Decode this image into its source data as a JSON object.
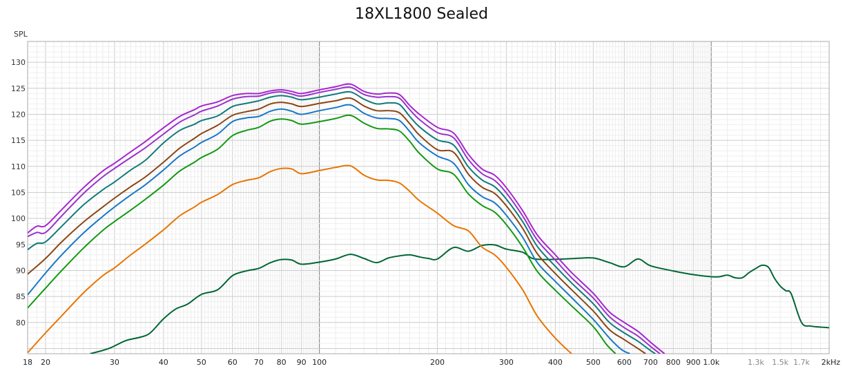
{
  "chart_data": {
    "type": "line",
    "title": "18XL1800 Sealed",
    "ylabel": "SPL",
    "xlabel": "",
    "x_scale": "log",
    "xlim": [
      18,
      2000
    ],
    "ylim": [
      74,
      134
    ],
    "grid": true,
    "legend": "none",
    "y_ticks": [
      80,
      85,
      90,
      95,
      100,
      105,
      110,
      115,
      120,
      125,
      130
    ],
    "x_ticks": [
      {
        "value": 18,
        "label": "18",
        "minor": false
      },
      {
        "value": 20,
        "label": "20",
        "minor": false
      },
      {
        "value": 30,
        "label": "30",
        "minor": false
      },
      {
        "value": 40,
        "label": "40",
        "minor": false
      },
      {
        "value": 50,
        "label": "50",
        "minor": false
      },
      {
        "value": 60,
        "label": "60",
        "minor": false
      },
      {
        "value": 70,
        "label": "70",
        "minor": false
      },
      {
        "value": 80,
        "label": "80",
        "minor": false
      },
      {
        "value": 90,
        "label": "90",
        "minor": false
      },
      {
        "value": 100,
        "label": "100",
        "minor": false
      },
      {
        "value": 200,
        "label": "200",
        "minor": false
      },
      {
        "value": 300,
        "label": "300",
        "minor": false
      },
      {
        "value": 400,
        "label": "400",
        "minor": false
      },
      {
        "value": 500,
        "label": "500",
        "minor": false
      },
      {
        "value": 600,
        "label": "600",
        "minor": false
      },
      {
        "value": 700,
        "label": "700",
        "minor": false
      },
      {
        "value": 800,
        "label": "800",
        "minor": false
      },
      {
        "value": 900,
        "label": "900",
        "minor": false
      },
      {
        "value": 1000,
        "label": "1.0k",
        "minor": false
      },
      {
        "value": 1300,
        "label": "1.3k",
        "minor": true
      },
      {
        "value": 1500,
        "label": "1.5k",
        "minor": true
      },
      {
        "value": 1700,
        "label": "1.7k",
        "minor": true
      },
      {
        "value": 2000,
        "label": "2kHz",
        "minor": false
      }
    ],
    "series": [
      {
        "color": "#006633",
        "x": [
          26,
          29,
          32,
          35,
          37,
          40,
          43,
          46,
          50,
          55,
          60,
          65,
          70,
          75,
          80,
          85,
          90,
          100,
          110,
          120,
          130,
          140,
          150,
          160,
          170,
          180,
          190,
          200,
          220,
          240,
          260,
          280,
          300,
          330,
          350,
          380,
          420,
          450,
          500,
          550,
          600,
          650,
          700,
          800,
          900,
          1000,
          1050,
          1100,
          1150,
          1200,
          1250,
          1300,
          1350,
          1400,
          1450,
          1500,
          1550,
          1600,
          1700,
          1800,
          2000
        ],
        "y": [
          74,
          75,
          76.5,
          77.2,
          78,
          80.7,
          82.6,
          83.5,
          85.4,
          86.3,
          89,
          89.9,
          90.4,
          91.5,
          92.1,
          92,
          91.2,
          91.6,
          92.2,
          93.1,
          92.3,
          91.5,
          92.4,
          92.8,
          93,
          92.6,
          92.3,
          92.2,
          94.4,
          93.7,
          94.8,
          94.9,
          94.1,
          93.5,
          92.3,
          92.1,
          92.2,
          92.3,
          92.4,
          91.5,
          90.7,
          92.2,
          90.9,
          89.9,
          89.2,
          88.8,
          88.8,
          89.1,
          88.6,
          88.6,
          89.6,
          90.4,
          91,
          90.6,
          88.5,
          87,
          86.1,
          85.5,
          80,
          79.3,
          79
        ]
      },
      {
        "color": "#E87400",
        "x": [
          18,
          20,
          22,
          25,
          28,
          30,
          33,
          36,
          40,
          44,
          48,
          50,
          55,
          60,
          65,
          70,
          75,
          80,
          85,
          90,
          100,
          110,
          120,
          130,
          140,
          150,
          160,
          170,
          180,
          200,
          220,
          240,
          260,
          280,
          300,
          330,
          360,
          400,
          440
        ],
        "y": [
          74.2,
          78,
          81.3,
          85.7,
          89,
          90.5,
          93,
          95.1,
          97.8,
          100.5,
          102.2,
          103.1,
          104.6,
          106.5,
          107.3,
          107.8,
          109,
          109.6,
          109.5,
          108.6,
          109.2,
          109.8,
          110.1,
          108.3,
          107.4,
          107.3,
          106.8,
          105.2,
          103.4,
          101,
          98.6,
          97.6,
          94.5,
          93,
          90.6,
          86.3,
          81.2,
          77,
          74
        ]
      },
      {
        "color": "#119911",
        "x": [
          18,
          20,
          22,
          25,
          28,
          30,
          33,
          36,
          40,
          44,
          48,
          50,
          55,
          60,
          65,
          70,
          75,
          80,
          85,
          90,
          100,
          110,
          120,
          130,
          140,
          150,
          160,
          170,
          180,
          200,
          220,
          240,
          260,
          280,
          300,
          330,
          360,
          400,
          440,
          500,
          540,
          570
        ],
        "y": [
          82.8,
          86.6,
          90,
          94.3,
          97.7,
          99.4,
          101.6,
          103.7,
          106.4,
          109.1,
          110.8,
          111.7,
          113.3,
          115.9,
          116.9,
          117.5,
          118.7,
          119.1,
          118.8,
          118.1,
          118.6,
          119.2,
          119.8,
          118.3,
          117.3,
          117.2,
          116.8,
          114.8,
          112.5,
          109.5,
          108.5,
          104.7,
          102.5,
          101.2,
          98.8,
          94.5,
          89.8,
          86.2,
          83.2,
          79.2,
          75.8,
          74
        ]
      },
      {
        "color": "#1877C8",
        "x": [
          18,
          20,
          22,
          25,
          28,
          30,
          33,
          36,
          40,
          44,
          48,
          50,
          55,
          60,
          65,
          70,
          75,
          80,
          85,
          90,
          100,
          110,
          120,
          130,
          140,
          150,
          160,
          170,
          180,
          200,
          220,
          240,
          260,
          280,
          300,
          330,
          360,
          400,
          440,
          500,
          550,
          590,
          620
        ],
        "y": [
          85.3,
          89.5,
          93,
          97.2,
          100.4,
          102.2,
          104.5,
          106.5,
          109.3,
          112,
          113.7,
          114.6,
          116.2,
          118.6,
          119.3,
          119.6,
          120.6,
          121,
          120.6,
          120,
          120.7,
          121.3,
          121.8,
          120.2,
          119.3,
          119.2,
          118.8,
          116.7,
          114.5,
          112,
          110.6,
          106.5,
          104.2,
          103,
          100.6,
          96.4,
          91.5,
          87.9,
          84.8,
          80.6,
          77,
          74.8,
          74
        ]
      },
      {
        "color": "#8B4513",
        "x": [
          18,
          20,
          22,
          25,
          28,
          30,
          33,
          36,
          40,
          44,
          48,
          50,
          55,
          60,
          65,
          70,
          75,
          80,
          85,
          90,
          100,
          110,
          120,
          130,
          140,
          150,
          160,
          170,
          180,
          200,
          220,
          240,
          260,
          280,
          300,
          330,
          360,
          400,
          440,
          500,
          550,
          600,
          650,
          680
        ],
        "y": [
          89.3,
          92.3,
          95.5,
          99.3,
          102.2,
          103.9,
          106.1,
          108,
          110.8,
          113.5,
          115.4,
          116.3,
          117.9,
          119.8,
          120.5,
          121,
          122,
          122.3,
          122,
          121.5,
          122.1,
          122.6,
          123.1,
          121.6,
          120.7,
          120.7,
          120.3,
          118.2,
          116,
          113.2,
          112.7,
          108.5,
          106,
          104.8,
          102.4,
          98.1,
          93.2,
          89.4,
          86.3,
          82.2,
          78.6,
          76.7,
          75,
          74
        ]
      },
      {
        "color": "#117A7A",
        "x": [
          18,
          19,
          20,
          22,
          25,
          28,
          30,
          33,
          36,
          40,
          44,
          48,
          50,
          55,
          60,
          65,
          70,
          75,
          80,
          85,
          90,
          100,
          110,
          120,
          130,
          140,
          150,
          160,
          170,
          180,
          200,
          220,
          240,
          260,
          280,
          300,
          330,
          360,
          400,
          440,
          500,
          550,
          600,
          650,
          700,
          720
        ],
        "y": [
          94,
          95.2,
          95.5,
          98.5,
          102.6,
          105.5,
          107,
          109.3,
          111.2,
          114.5,
          116.9,
          118.1,
          118.8,
          119.7,
          121.5,
          122.1,
          122.6,
          123.3,
          123.6,
          123.3,
          122.8,
          123.3,
          123.9,
          124.3,
          122.9,
          122,
          122.2,
          121.9,
          119.6,
          117.6,
          115.1,
          114.1,
          109.9,
          107.4,
          106.1,
          103.7,
          99.4,
          94.6,
          90.8,
          87.6,
          83.6,
          80,
          78,
          76.4,
          74.6,
          74
        ]
      },
      {
        "color": "#9933CC",
        "x": [
          18,
          19,
          20,
          22,
          25,
          28,
          30,
          33,
          36,
          40,
          44,
          48,
          50,
          55,
          60,
          65,
          70,
          75,
          80,
          85,
          90,
          100,
          110,
          120,
          130,
          140,
          150,
          160,
          170,
          180,
          200,
          220,
          240,
          260,
          280,
          300,
          330,
          360,
          400,
          440,
          500,
          550,
          600,
          650,
          700,
          740
        ],
        "y": [
          96.5,
          97.3,
          97.3,
          100.5,
          104.8,
          108,
          109.6,
          111.7,
          113.6,
          116.2,
          118.5,
          119.9,
          120.6,
          121.6,
          122.9,
          123.4,
          123.5,
          124.1,
          124.3,
          123.9,
          123.5,
          124.2,
          124.8,
          125.2,
          123.8,
          123.3,
          123.4,
          123.1,
          120.9,
          119,
          116.5,
          115.5,
          111.3,
          108.6,
          107.3,
          104.9,
          100.5,
          95.8,
          92,
          88.6,
          84.7,
          81.1,
          79,
          77.4,
          75.4,
          74
        ]
      },
      {
        "color": "#A626D0",
        "x": [
          18,
          19,
          20,
          22,
          25,
          28,
          30,
          33,
          36,
          40,
          44,
          48,
          50,
          55,
          60,
          65,
          70,
          75,
          80,
          85,
          90,
          100,
          110,
          120,
          130,
          140,
          150,
          160,
          170,
          180,
          200,
          220,
          240,
          260,
          280,
          300,
          330,
          360,
          400,
          440,
          500,
          550,
          600,
          650,
          700,
          760
        ],
        "y": [
          97.2,
          98.5,
          98.6,
          101.7,
          105.9,
          109.1,
          110.6,
          112.8,
          114.8,
          117.4,
          119.6,
          120.9,
          121.6,
          122.4,
          123.6,
          124,
          124,
          124.5,
          124.7,
          124.4,
          124,
          124.7,
          125.3,
          125.8,
          124.4,
          123.9,
          124.1,
          123.8,
          121.7,
          120,
          117.5,
          116.4,
          112.3,
          109.5,
          108.3,
          105.9,
          101.5,
          96.8,
          93,
          89.6,
          85.6,
          82,
          80,
          78.3,
          76.2,
          74
        ]
      }
    ]
  }
}
